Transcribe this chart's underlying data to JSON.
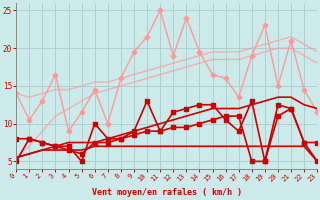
{
  "background_color": "#cceaea",
  "grid_color": "#aacccc",
  "xlabel": "Vent moyen/en rafales ( km/h )",
  "xlim": [
    0,
    23
  ],
  "ylim": [
    4,
    26
  ],
  "yticks": [
    5,
    10,
    15,
    20,
    25
  ],
  "xticks": [
    0,
    1,
    2,
    3,
    4,
    5,
    6,
    7,
    8,
    9,
    10,
    11,
    12,
    13,
    14,
    15,
    16,
    17,
    18,
    19,
    20,
    21,
    22,
    23
  ],
  "series": [
    {
      "color": "#ff9999",
      "alpha": 1.0,
      "lw": 1.0,
      "marker": "D",
      "ms": 2.5,
      "y": [
        14,
        10.5,
        13,
        16.5,
        9.0,
        11.5,
        14.5,
        10.0,
        16.0,
        19.5,
        21.5,
        25.0,
        19.0,
        24.0,
        19.5,
        16.5,
        16.0,
        13.5,
        19.0,
        23.0,
        15.0,
        21.0,
        14.5,
        11.5
      ]
    },
    {
      "color": "#ff9999",
      "alpha": 0.7,
      "lw": 1.0,
      "marker": null,
      "ms": 0,
      "y": [
        14.0,
        13.5,
        14.0,
        14.5,
        14.5,
        15.0,
        15.5,
        15.5,
        16.0,
        16.5,
        17.0,
        17.5,
        18.0,
        18.5,
        19.0,
        19.5,
        19.5,
        19.5,
        20.0,
        20.5,
        21.0,
        21.5,
        20.5,
        19.5
      ]
    },
    {
      "color": "#ff9999",
      "alpha": 0.7,
      "lw": 1.0,
      "marker": null,
      "ms": 0,
      "y": [
        5.5,
        7.0,
        9.0,
        11.0,
        12.0,
        13.0,
        14.0,
        14.5,
        15.0,
        15.5,
        16.0,
        16.5,
        17.0,
        17.5,
        18.0,
        18.5,
        18.5,
        18.5,
        19.0,
        19.5,
        20.0,
        20.0,
        19.0,
        18.0
      ]
    },
    {
      "color": "#cc0000",
      "alpha": 1.0,
      "lw": 1.2,
      "marker": "s",
      "ms": 2.5,
      "y": [
        5.0,
        8.0,
        7.5,
        7.0,
        7.0,
        5.0,
        10.0,
        8.0,
        8.0,
        9.0,
        13.0,
        9.0,
        11.5,
        12.0,
        12.5,
        12.5,
        10.5,
        9.0,
        13.0,
        5.0,
        12.5,
        12.0,
        7.5,
        7.5
      ]
    },
    {
      "color": "#cc0000",
      "alpha": 1.0,
      "lw": 1.2,
      "marker": "s",
      "ms": 2.5,
      "y": [
        8.0,
        8.0,
        7.5,
        7.0,
        6.5,
        6.0,
        7.5,
        7.5,
        8.0,
        8.5,
        9.0,
        9.0,
        9.5,
        9.5,
        10.0,
        10.5,
        11.0,
        11.0,
        5.0,
        5.0,
        11.0,
        12.0,
        7.5,
        5.0
      ]
    },
    {
      "color": "#cc0000",
      "alpha": 1.0,
      "lw": 1.2,
      "marker": null,
      "ms": 0,
      "y": [
        5.5,
        6.0,
        6.5,
        7.0,
        7.5,
        7.5,
        7.5,
        8.0,
        8.5,
        9.0,
        9.5,
        10.0,
        10.5,
        11.0,
        11.5,
        12.0,
        12.0,
        12.0,
        12.5,
        13.0,
        13.5,
        13.5,
        12.5,
        12.0
      ]
    },
    {
      "color": "#cc0000",
      "alpha": 1.0,
      "lw": 1.2,
      "marker": null,
      "ms": 0,
      "y": [
        5.5,
        6.0,
        6.5,
        6.5,
        6.5,
        6.5,
        7.0,
        7.0,
        7.0,
        7.0,
        7.0,
        7.0,
        7.0,
        7.0,
        7.0,
        7.0,
        7.0,
        7.0,
        7.0,
        7.0,
        7.0,
        7.0,
        7.0,
        5.0
      ]
    }
  ]
}
